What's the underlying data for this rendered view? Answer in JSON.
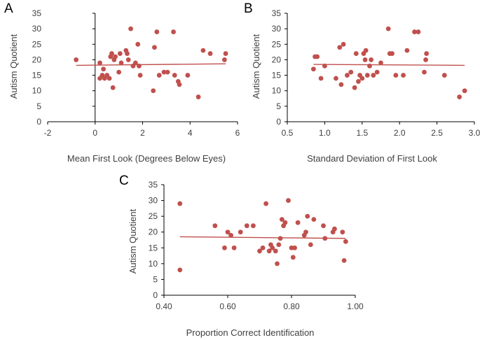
{
  "chart_data": [
    {
      "type": "scatter",
      "panel": "A",
      "xlabel": "Mean First Look (Degrees Below Eyes)",
      "ylabel": "Autism Quotient",
      "xlim": [
        -2,
        6
      ],
      "ylim": [
        0,
        35
      ],
      "xticks": [
        "-2",
        "0",
        "2",
        "4",
        "6"
      ],
      "xtick_values": [
        -2,
        0,
        2,
        4,
        6
      ],
      "yticks": [
        "0",
        "5",
        "10",
        "15",
        "20",
        "25",
        "30",
        "35"
      ],
      "ytick_values": [
        0,
        5,
        10,
        15,
        20,
        25,
        30,
        35
      ],
      "x": [
        -0.8,
        0.2,
        0.2,
        0.3,
        0.35,
        0.4,
        0.5,
        0.6,
        0.65,
        0.7,
        0.75,
        0.8,
        0.85,
        1.0,
        1.05,
        1.1,
        1.3,
        1.35,
        1.4,
        1.5,
        1.6,
        1.7,
        1.8,
        1.85,
        1.9,
        2.45,
        2.5,
        2.6,
        2.7,
        2.9,
        3.05,
        3.3,
        3.35,
        3.5,
        3.55,
        3.9,
        4.35,
        4.55,
        4.85,
        5.45,
        5.5
      ],
      "y": [
        20,
        14,
        19,
        15,
        17,
        14,
        15,
        14,
        21,
        22,
        11,
        20,
        21,
        16,
        22,
        19,
        23,
        22,
        20,
        30,
        18,
        19,
        25,
        18,
        15,
        10,
        24,
        29,
        15,
        16,
        16,
        29,
        15,
        13,
        12,
        15,
        8,
        23,
        22,
        20,
        22
      ],
      "trend": [
        [
          -0.8,
          18.2
        ],
        [
          5.5,
          18.7
        ]
      ],
      "x_axis_at_y": 0,
      "y_axis_at_x": 0
    },
    {
      "type": "scatter",
      "panel": "B",
      "xlabel": "Standard Deviation of First Look",
      "ylabel": "Autism Quotient",
      "xlim": [
        0.5,
        3.0
      ],
      "ylim": [
        0,
        35
      ],
      "xticks": [
        "0.5",
        "1.0",
        "1.5",
        "2.0",
        "2.5",
        "3.0"
      ],
      "xtick_values": [
        0.5,
        1.0,
        1.5,
        2.0,
        2.5,
        3.0
      ],
      "yticks": [
        "0",
        "5",
        "10",
        "15",
        "20",
        "25",
        "30",
        "35"
      ],
      "ytick_values": [
        0,
        5,
        10,
        15,
        20,
        25,
        30,
        35
      ],
      "x": [
        0.85,
        0.87,
        0.9,
        0.95,
        1.0,
        1.15,
        1.2,
        1.22,
        1.25,
        1.3,
        1.35,
        1.4,
        1.42,
        1.45,
        1.47,
        1.5,
        1.52,
        1.54,
        1.55,
        1.57,
        1.6,
        1.62,
        1.65,
        1.7,
        1.75,
        1.85,
        1.87,
        1.9,
        1.95,
        2.05,
        2.1,
        2.2,
        2.25,
        2.33,
        2.35,
        2.36,
        2.6,
        2.8,
        2.87
      ],
      "y": [
        17,
        21,
        21,
        14,
        18,
        14,
        24,
        12,
        25,
        15,
        16,
        11,
        22,
        13,
        15,
        14,
        22,
        20,
        23,
        15,
        18,
        20,
        15,
        16,
        19,
        30,
        22,
        22,
        15,
        15,
        23,
        29,
        29,
        16,
        20,
        22,
        15,
        8,
        10
      ],
      "trend": [
        [
          0.85,
          18.5
        ],
        [
          2.87,
          18.2
        ]
      ],
      "x_axis_at_y": 0,
      "y_axis_at_x": 0.5
    },
    {
      "type": "scatter",
      "panel": "C",
      "xlabel": "Proportion Correct Identification",
      "ylabel": "Autism Quotient",
      "xlim": [
        0.4,
        1.0
      ],
      "ylim": [
        0,
        35
      ],
      "xticks": [
        "0.40",
        "0.60",
        "0.80",
        "1.00"
      ],
      "xtick_values": [
        0.4,
        0.6,
        0.8,
        1.0
      ],
      "yticks": [
        "0",
        "5",
        "10",
        "15",
        "20",
        "25",
        "30",
        "35"
      ],
      "ytick_values": [
        0,
        5,
        10,
        15,
        20,
        25,
        30,
        35
      ],
      "x": [
        0.45,
        0.45,
        0.56,
        0.59,
        0.6,
        0.61,
        0.62,
        0.64,
        0.66,
        0.68,
        0.7,
        0.71,
        0.72,
        0.73,
        0.735,
        0.74,
        0.75,
        0.755,
        0.76,
        0.765,
        0.77,
        0.775,
        0.78,
        0.79,
        0.8,
        0.805,
        0.81,
        0.82,
        0.84,
        0.845,
        0.85,
        0.86,
        0.87,
        0.9,
        0.905,
        0.93,
        0.935,
        0.96,
        0.965,
        0.97
      ],
      "y": [
        29,
        8,
        22,
        15,
        20,
        19,
        15,
        20,
        22,
        22,
        14,
        15,
        29,
        14,
        16,
        15,
        14,
        10,
        16,
        18,
        24,
        22,
        23,
        30,
        15,
        12,
        15,
        23,
        19,
        20,
        25,
        16,
        24,
        22,
        18,
        20,
        21,
        20,
        11,
        17
      ],
      "trend": [
        [
          0.45,
          18.5
        ],
        [
          0.97,
          18.0
        ]
      ],
      "x_axis_at_y": 0,
      "y_axis_at_x": 0.4
    }
  ]
}
